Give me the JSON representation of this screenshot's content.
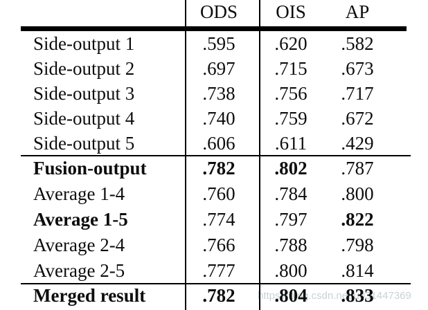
{
  "header": {
    "ods": "ODS",
    "ois": "OIS",
    "ap": "AP"
  },
  "rows": [
    {
      "label": "Side-output 1",
      "ods": ".595",
      "ois": ".620",
      "ap": ".582"
    },
    {
      "label": "Side-output 2",
      "ods": ".697",
      "ois": ".715",
      "ap": ".673"
    },
    {
      "label": "Side-output 3",
      "ods": ".738",
      "ois": ".756",
      "ap": ".717"
    },
    {
      "label": "Side-output 4",
      "ods": ".740",
      "ois": ".759",
      "ap": ".672"
    },
    {
      "label": "Side-output 5",
      "ods": ".606",
      "ois": ".611",
      "ap": ".429"
    },
    {
      "label": "Fusion-output",
      "ods": ".782",
      "ois": ".802",
      "ap": ".787"
    },
    {
      "label": "Average 1-4",
      "ods": ".760",
      "ois": ".784",
      "ap": ".800"
    },
    {
      "label": "Average 1-5",
      "ods": ".774",
      "ois": ".797",
      "ap": ".822"
    },
    {
      "label": "Average 2-4",
      "ods": ".766",
      "ois": ".788",
      "ap": ".798"
    },
    {
      "label": "Average 2-5",
      "ods": ".777",
      "ois": ".800",
      "ap": ".814"
    },
    {
      "label": "Merged result",
      "ods": ".782",
      "ois": ".804",
      "ap": ".833"
    }
  ],
  "watermark": "https://blog.csdn.net/u031447369",
  "colors": {
    "text": "#0d0d0d",
    "rule": "#000000",
    "watermark": "#c9d2d6",
    "background": "#ffffff"
  }
}
